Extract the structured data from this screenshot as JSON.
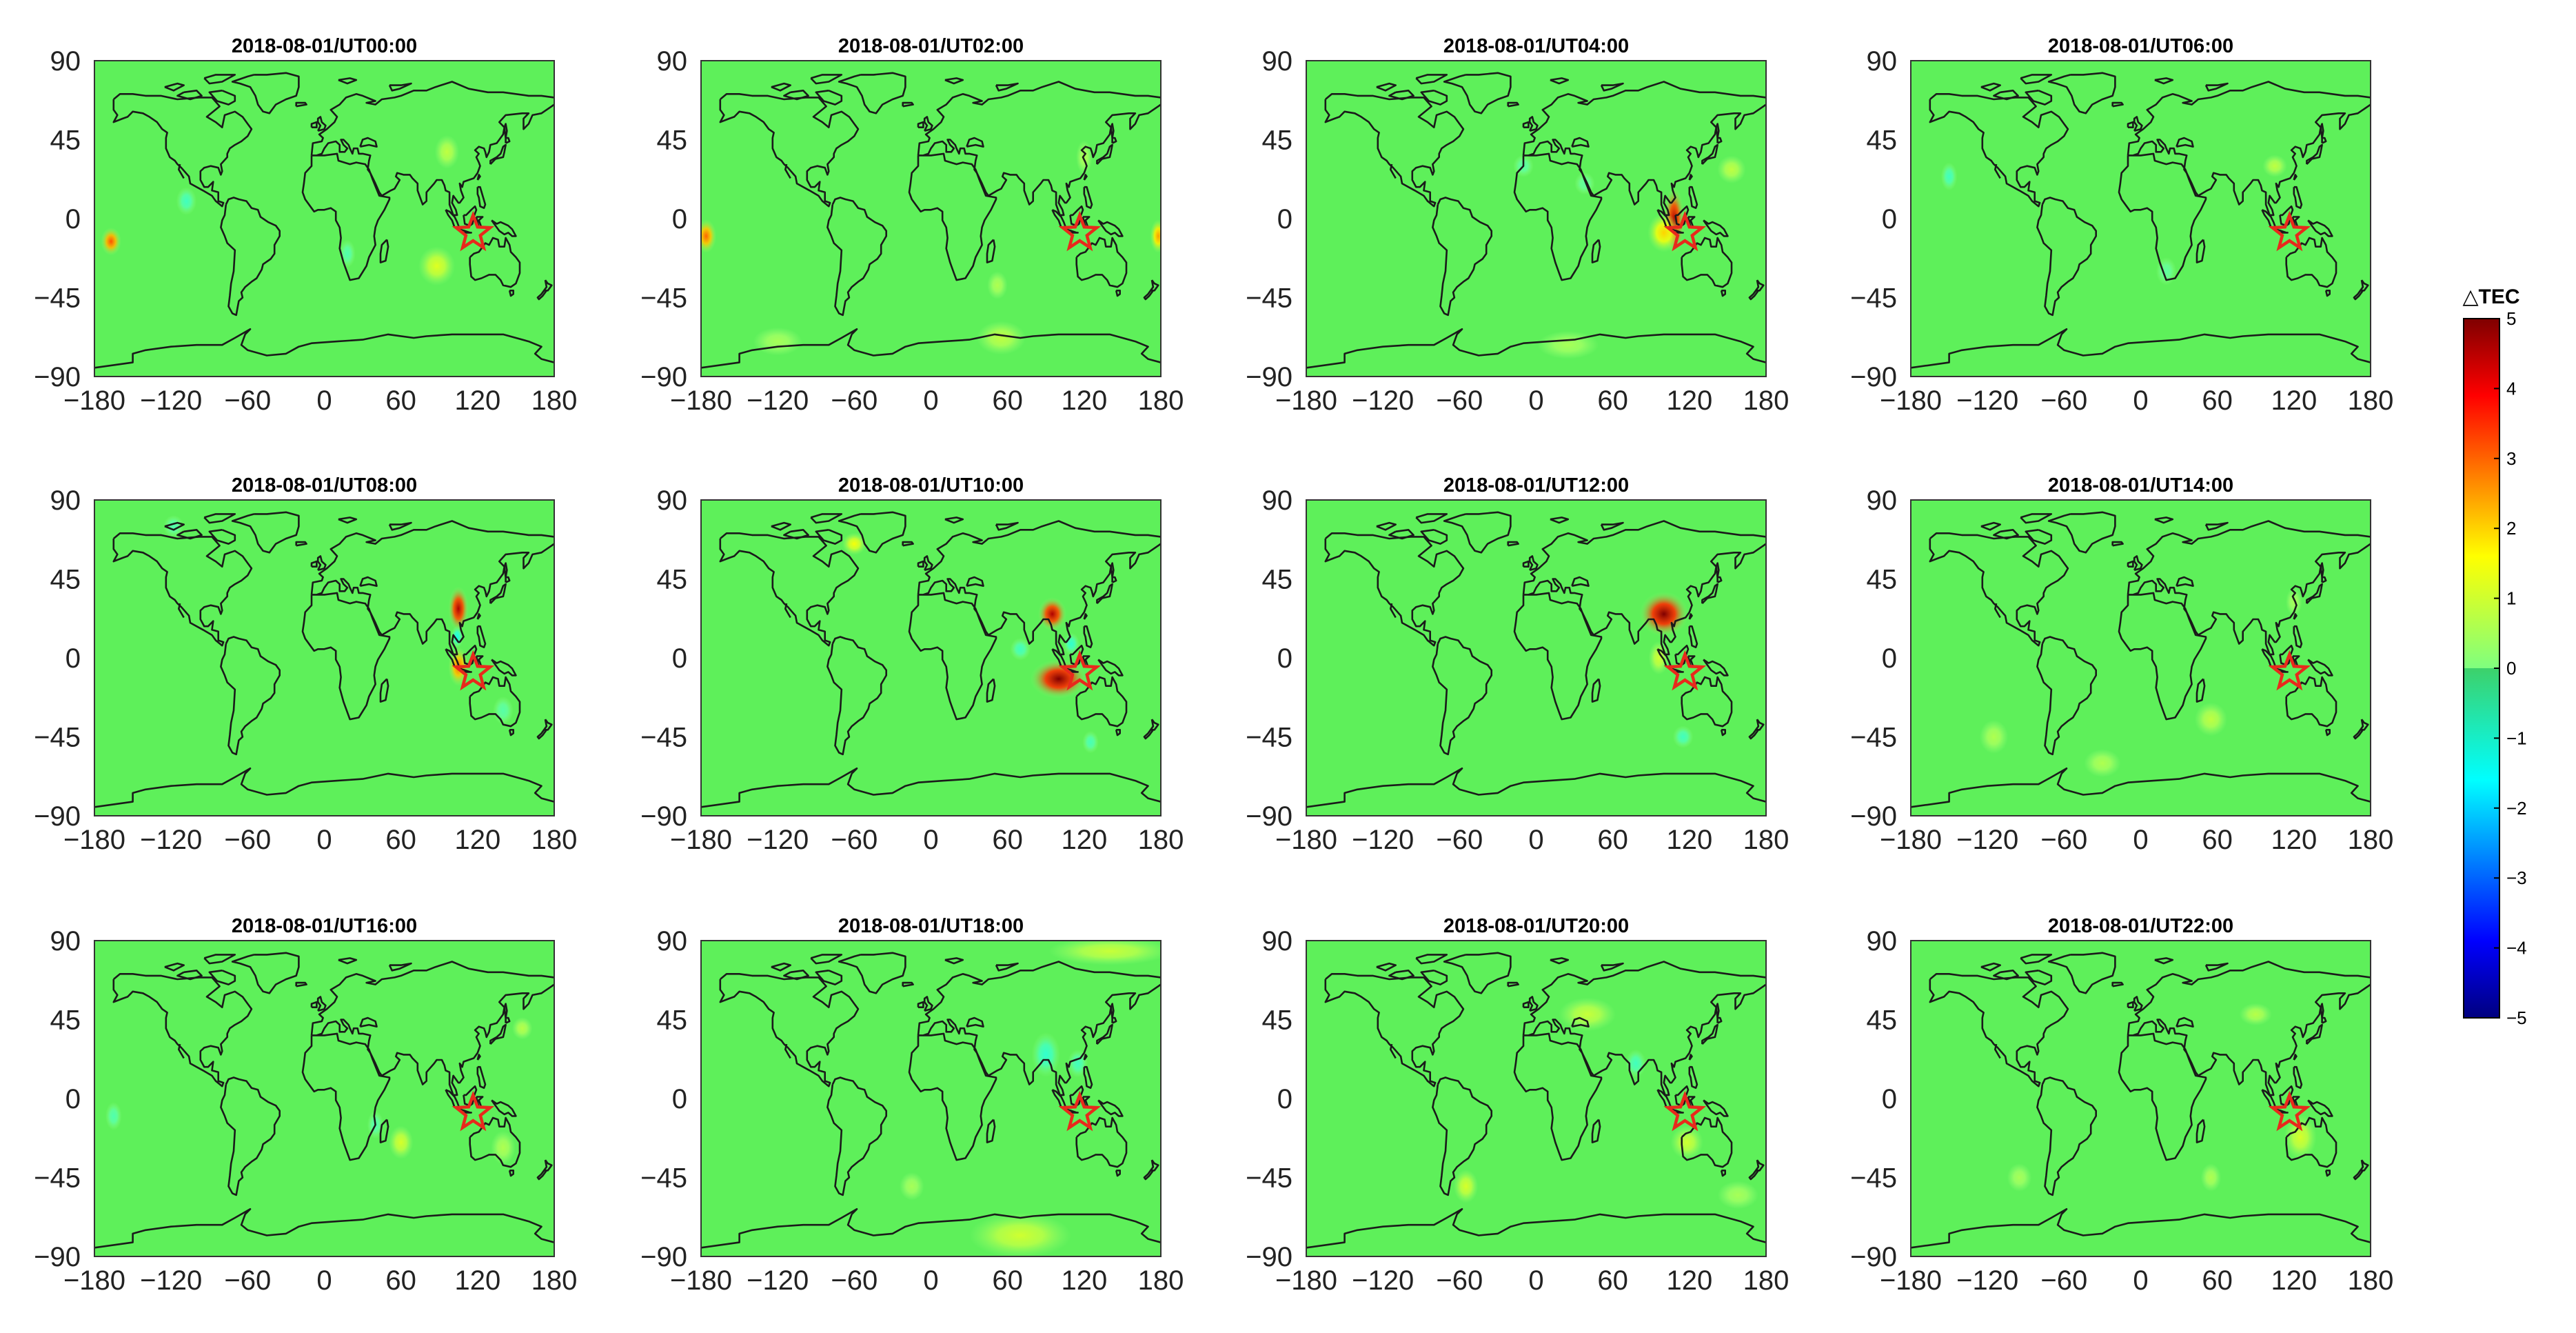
{
  "figure": {
    "colorbar": {
      "title": "△TEC",
      "min": -5,
      "max": 5,
      "ticks": [
        "5",
        "4",
        "3",
        "2",
        "1",
        "0",
        "−1",
        "−2",
        "−3",
        "−4",
        "−5"
      ],
      "colormap": "jet"
    },
    "axes": {
      "x_ticks": [
        "−180",
        "−120",
        "−60",
        "0",
        "60",
        "120",
        "180"
      ],
      "y_ticks": [
        "90",
        "45",
        "0",
        "−45",
        "−90"
      ],
      "xlim": [
        -180,
        180
      ],
      "ylim": [
        -90,
        90
      ]
    },
    "epicenter": {
      "lon": 116.5,
      "lat": -8.3,
      "marker": "star-icon",
      "color": "#e8291c"
    },
    "panels": [
      {
        "title": "2018-08-01/UT00:00",
        "anomalies": [
          {
            "lon": -167,
            "lat": -13,
            "value": 3.2,
            "sx": 5,
            "sy": 5
          },
          {
            "lon": 88,
            "lat": -27,
            "value": 1.2,
            "sx": 9,
            "sy": 7
          },
          {
            "lon": 96,
            "lat": 38,
            "value": 0.8,
            "sx": 6,
            "sy": 6
          },
          {
            "lon": -108,
            "lat": 10,
            "value": -0.8,
            "sx": 5,
            "sy": 5
          },
          {
            "lon": 18,
            "lat": -20,
            "value": -0.6,
            "sx": 4,
            "sy": 5
          }
        ]
      },
      {
        "title": "2018-08-01/UT02:00",
        "anomalies": [
          {
            "lon": -176,
            "lat": -10,
            "value": 3.0,
            "sx": 5,
            "sy": 6
          },
          {
            "lon": 178,
            "lat": -10,
            "value": 2.5,
            "sx": 4,
            "sy": 6
          },
          {
            "lon": 55,
            "lat": -68,
            "value": 0.8,
            "sx": 12,
            "sy": 6
          },
          {
            "lon": 52,
            "lat": -38,
            "value": 0.6,
            "sx": 5,
            "sy": 5
          },
          {
            "lon": -120,
            "lat": -70,
            "value": 0.5,
            "sx": 12,
            "sy": 5
          },
          {
            "lon": 120,
            "lat": 35,
            "value": 0.6,
            "sx": 4,
            "sy": 6
          }
        ]
      },
      {
        "title": "2018-08-01/UT04:00",
        "anomalies": [
          {
            "lon": 108,
            "lat": -1,
            "value": 4.6,
            "sx": 5,
            "sy": 12
          },
          {
            "lon": 100,
            "lat": -8,
            "value": 2.0,
            "sx": 8,
            "sy": 7
          },
          {
            "lon": 153,
            "lat": 28,
            "value": 0.8,
            "sx": 7,
            "sy": 5
          },
          {
            "lon": 25,
            "lat": -72,
            "value": 0.5,
            "sx": 15,
            "sy": 5
          },
          {
            "lon": -10,
            "lat": 30,
            "value": -0.5,
            "sx": 5,
            "sy": 4
          },
          {
            "lon": 38,
            "lat": 20,
            "value": -0.4,
            "sx": 5,
            "sy": 4
          }
        ]
      },
      {
        "title": "2018-08-01/UT06:00",
        "anomalies": [
          {
            "lon": 105,
            "lat": 30,
            "value": 0.8,
            "sx": 6,
            "sy": 4
          },
          {
            "lon": -150,
            "lat": 24,
            "value": -0.8,
            "sx": 4,
            "sy": 5
          },
          {
            "lon": 20,
            "lat": -30,
            "value": -0.4,
            "sx": 5,
            "sy": 5
          }
        ]
      },
      {
        "title": "2018-08-01/UT08:00",
        "anomalies": [
          {
            "lon": 105,
            "lat": 28,
            "value": 4.6,
            "sx": 5,
            "sy": 8
          },
          {
            "lon": 105,
            "lat": -5,
            "value": 3.0,
            "sx": 5,
            "sy": 7
          },
          {
            "lon": 104,
            "lat": 12,
            "value": -1.3,
            "sx": 3,
            "sy": 4
          },
          {
            "lon": -118,
            "lat": 75,
            "value": -0.6,
            "sx": 5,
            "sy": 4
          },
          {
            "lon": 140,
            "lat": -30,
            "value": -0.5,
            "sx": 5,
            "sy": 5
          }
        ]
      },
      {
        "title": "2018-08-01/UT10:00",
        "anomalies": [
          {
            "lon": 100,
            "lat": -12,
            "value": 5.0,
            "sx": 14,
            "sy": 7
          },
          {
            "lon": 95,
            "lat": 25,
            "value": 4.6,
            "sx": 7,
            "sy": 6
          },
          {
            "lon": -60,
            "lat": 65,
            "value": 1.5,
            "sx": 6,
            "sy": 4
          },
          {
            "lon": 110,
            "lat": 8,
            "value": -1.0,
            "sx": 4,
            "sy": 4
          },
          {
            "lon": 70,
            "lat": 5,
            "value": -0.8,
            "sx": 5,
            "sy": 4
          },
          {
            "lon": 125,
            "lat": -48,
            "value": -0.7,
            "sx": 4,
            "sy": 4
          }
        ]
      },
      {
        "title": "2018-08-01/UT12:00",
        "anomalies": [
          {
            "lon": 100,
            "lat": 25,
            "value": 5.0,
            "sx": 12,
            "sy": 8
          },
          {
            "lon": 96,
            "lat": 0,
            "value": 1.0,
            "sx": 5,
            "sy": 6
          },
          {
            "lon": 115,
            "lat": -45,
            "value": -0.8,
            "sx": 5,
            "sy": 4
          }
        ]
      },
      {
        "title": "2018-08-01/UT14:00",
        "anomalies": [
          {
            "lon": 55,
            "lat": -35,
            "value": 0.8,
            "sx": 8,
            "sy": 6
          },
          {
            "lon": -30,
            "lat": -60,
            "value": 0.6,
            "sx": 9,
            "sy": 5
          },
          {
            "lon": -115,
            "lat": -45,
            "value": 0.6,
            "sx": 7,
            "sy": 6
          },
          {
            "lon": 120,
            "lat": 32,
            "value": 0.5,
            "sx": 4,
            "sy": 5
          }
        ]
      },
      {
        "title": "2018-08-01/UT16:00",
        "anomalies": [
          {
            "lon": 60,
            "lat": -25,
            "value": 1.1,
            "sx": 6,
            "sy": 6
          },
          {
            "lon": 140,
            "lat": -28,
            "value": 0.6,
            "sx": 6,
            "sy": 6
          },
          {
            "lon": 155,
            "lat": 40,
            "value": 0.7,
            "sx": 5,
            "sy": 4
          },
          {
            "lon": 40,
            "lat": -15,
            "value": -0.6,
            "sx": 4,
            "sy": 5
          },
          {
            "lon": -165,
            "lat": -10,
            "value": -0.6,
            "sx": 4,
            "sy": 5
          }
        ]
      },
      {
        "title": "2018-08-01/UT18:00",
        "anomalies": [
          {
            "lon": 70,
            "lat": -78,
            "value": 1.0,
            "sx": 25,
            "sy": 8
          },
          {
            "lon": 140,
            "lat": 84,
            "value": 0.9,
            "sx": 30,
            "sy": 5
          },
          {
            "lon": 90,
            "lat": 25,
            "value": -1.0,
            "sx": 7,
            "sy": 8
          },
          {
            "lon": 115,
            "lat": 20,
            "value": -0.8,
            "sx": 5,
            "sy": 5
          },
          {
            "lon": -15,
            "lat": -50,
            "value": 0.5,
            "sx": 6,
            "sy": 5
          }
        ]
      },
      {
        "title": "2018-08-01/UT20:00",
        "anomalies": [
          {
            "lon": 40,
            "lat": 48,
            "value": 0.9,
            "sx": 14,
            "sy": 6
          },
          {
            "lon": -55,
            "lat": -50,
            "value": 1.1,
            "sx": 6,
            "sy": 6
          },
          {
            "lon": 118,
            "lat": -25,
            "value": 1.0,
            "sx": 8,
            "sy": 6
          },
          {
            "lon": 158,
            "lat": -55,
            "value": 0.5,
            "sx": 10,
            "sy": 5
          },
          {
            "lon": 78,
            "lat": 20,
            "value": -0.8,
            "sx": 5,
            "sy": 5
          }
        ]
      },
      {
        "title": "2018-08-01/UT22:00",
        "anomalies": [
          {
            "lon": 125,
            "lat": -22,
            "value": 1.1,
            "sx": 8,
            "sy": 8
          },
          {
            "lon": 90,
            "lat": 48,
            "value": 0.7,
            "sx": 8,
            "sy": 4
          },
          {
            "lon": 55,
            "lat": -45,
            "value": 0.6,
            "sx": 5,
            "sy": 5
          },
          {
            "lon": -95,
            "lat": -45,
            "value": 0.5,
            "sx": 6,
            "sy": 5
          }
        ]
      }
    ]
  }
}
